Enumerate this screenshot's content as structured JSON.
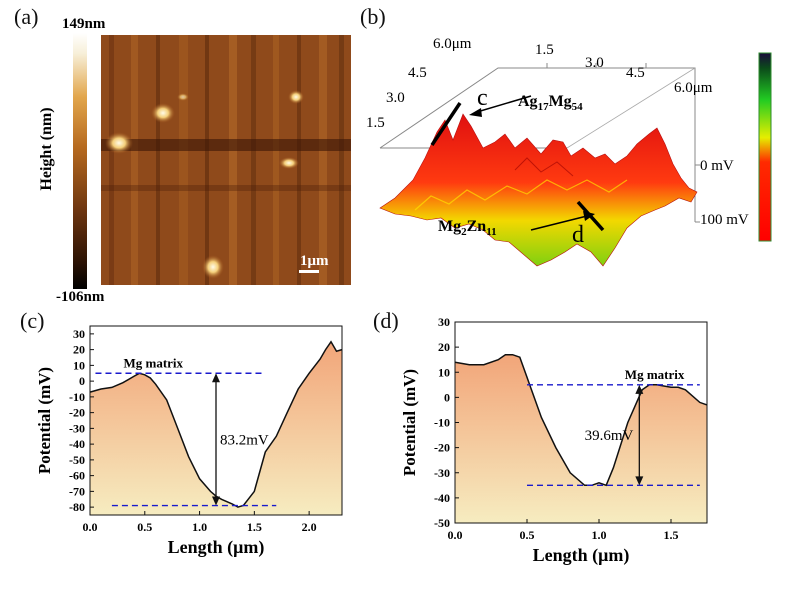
{
  "panels": {
    "a": {
      "label": "(a)",
      "colorbar_max": "149nm",
      "colorbar_min": "-106nm",
      "colorbar_title": "Height (nm)",
      "scalebar": "1μm"
    },
    "b": {
      "label": "(b)",
      "x_ticks": [
        "1.5",
        "3.0",
        "4.5",
        "6.0μm"
      ],
      "y_ticks": [
        "6.0μm",
        "4.5",
        "3.0",
        "1.5"
      ],
      "z_ticks": [
        "0 mV",
        "100 mV"
      ],
      "annotation_c": "c",
      "annotation_d": "d",
      "phase1_base": "Ag",
      "phase1_sub1": "17",
      "phase1_mid": "Mg",
      "phase1_sub2": "54",
      "phase2_base": "Mg",
      "phase2_sub1": "2",
      "phase2_mid": "Zn",
      "phase2_sub2": "11"
    }
  },
  "chart_data": [
    {
      "type": "area",
      "panel": "(c)",
      "title": "",
      "xlabel": "Length (μm)",
      "ylabel": "Potential (mV)",
      "xlim": [
        0,
        2.3
      ],
      "ylim": [
        -85,
        35
      ],
      "xticks": [
        "0.0",
        "0.5",
        "1.0",
        "1.5",
        "2.0"
      ],
      "xtick_values": [
        0,
        0.5,
        1.0,
        1.5,
        2.0
      ],
      "yticks": [
        30,
        20,
        10,
        0,
        -10,
        -20,
        -30,
        -40,
        -50,
        -60,
        -70,
        -80
      ],
      "x": [
        0,
        0.1,
        0.2,
        0.3,
        0.4,
        0.45,
        0.5,
        0.55,
        0.6,
        0.7,
        0.8,
        0.9,
        1.0,
        1.1,
        1.15,
        1.2,
        1.3,
        1.35,
        1.4,
        1.5,
        1.6,
        1.7,
        1.8,
        1.9,
        2.0,
        2.1,
        2.15,
        2.2,
        2.25,
        2.3
      ],
      "y": [
        -7,
        -5,
        -4,
        -1,
        3,
        5,
        4,
        2,
        -2,
        -12,
        -30,
        -48,
        -62,
        -70,
        -73,
        -75,
        -78,
        -80,
        -79,
        -70,
        -45,
        -35,
        -20,
        -5,
        5,
        14,
        20,
        25,
        19,
        20
      ],
      "reference_lines": [
        {
          "label": "Mg matrix",
          "y": 5,
          "x_start": 0.05,
          "x_end": 1.6
        },
        {
          "label": "",
          "y": -79,
          "x_start": 0.2,
          "x_end": 1.7
        }
      ],
      "difference_label": "83.2mV",
      "difference_x": 1.15
    },
    {
      "type": "area",
      "panel": "(d)",
      "title": "",
      "xlabel": "Length (μm)",
      "ylabel": "Potential (mV)",
      "xlim": [
        0,
        1.75
      ],
      "ylim": [
        -50,
        30
      ],
      "xticks": [
        "0.0",
        "0.5",
        "1.0",
        "1.5"
      ],
      "xtick_values": [
        0,
        0.5,
        1.0,
        1.5
      ],
      "yticks": [
        30,
        20,
        10,
        0,
        -10,
        -20,
        -30,
        -40,
        -50
      ],
      "x": [
        0,
        0.1,
        0.2,
        0.3,
        0.35,
        0.4,
        0.45,
        0.5,
        0.6,
        0.7,
        0.8,
        0.9,
        0.95,
        1.0,
        1.05,
        1.1,
        1.2,
        1.3,
        1.35,
        1.4,
        1.5,
        1.55,
        1.6,
        1.7,
        1.75
      ],
      "y": [
        14,
        13,
        13,
        15,
        17,
        17,
        16,
        8,
        -8,
        -20,
        -30,
        -35,
        -35,
        -34,
        -35,
        -28,
        -10,
        3,
        5,
        5,
        4,
        4,
        3,
        -2,
        -3
      ],
      "reference_lines": [
        {
          "label": "Mg matrix",
          "y": 5,
          "x_start": 0.5,
          "x_end": 1.7
        },
        {
          "label": "",
          "y": -35,
          "x_start": 0.5,
          "x_end": 1.7
        }
      ],
      "difference_label": "39.6mV",
      "difference_x": 1.28
    }
  ]
}
